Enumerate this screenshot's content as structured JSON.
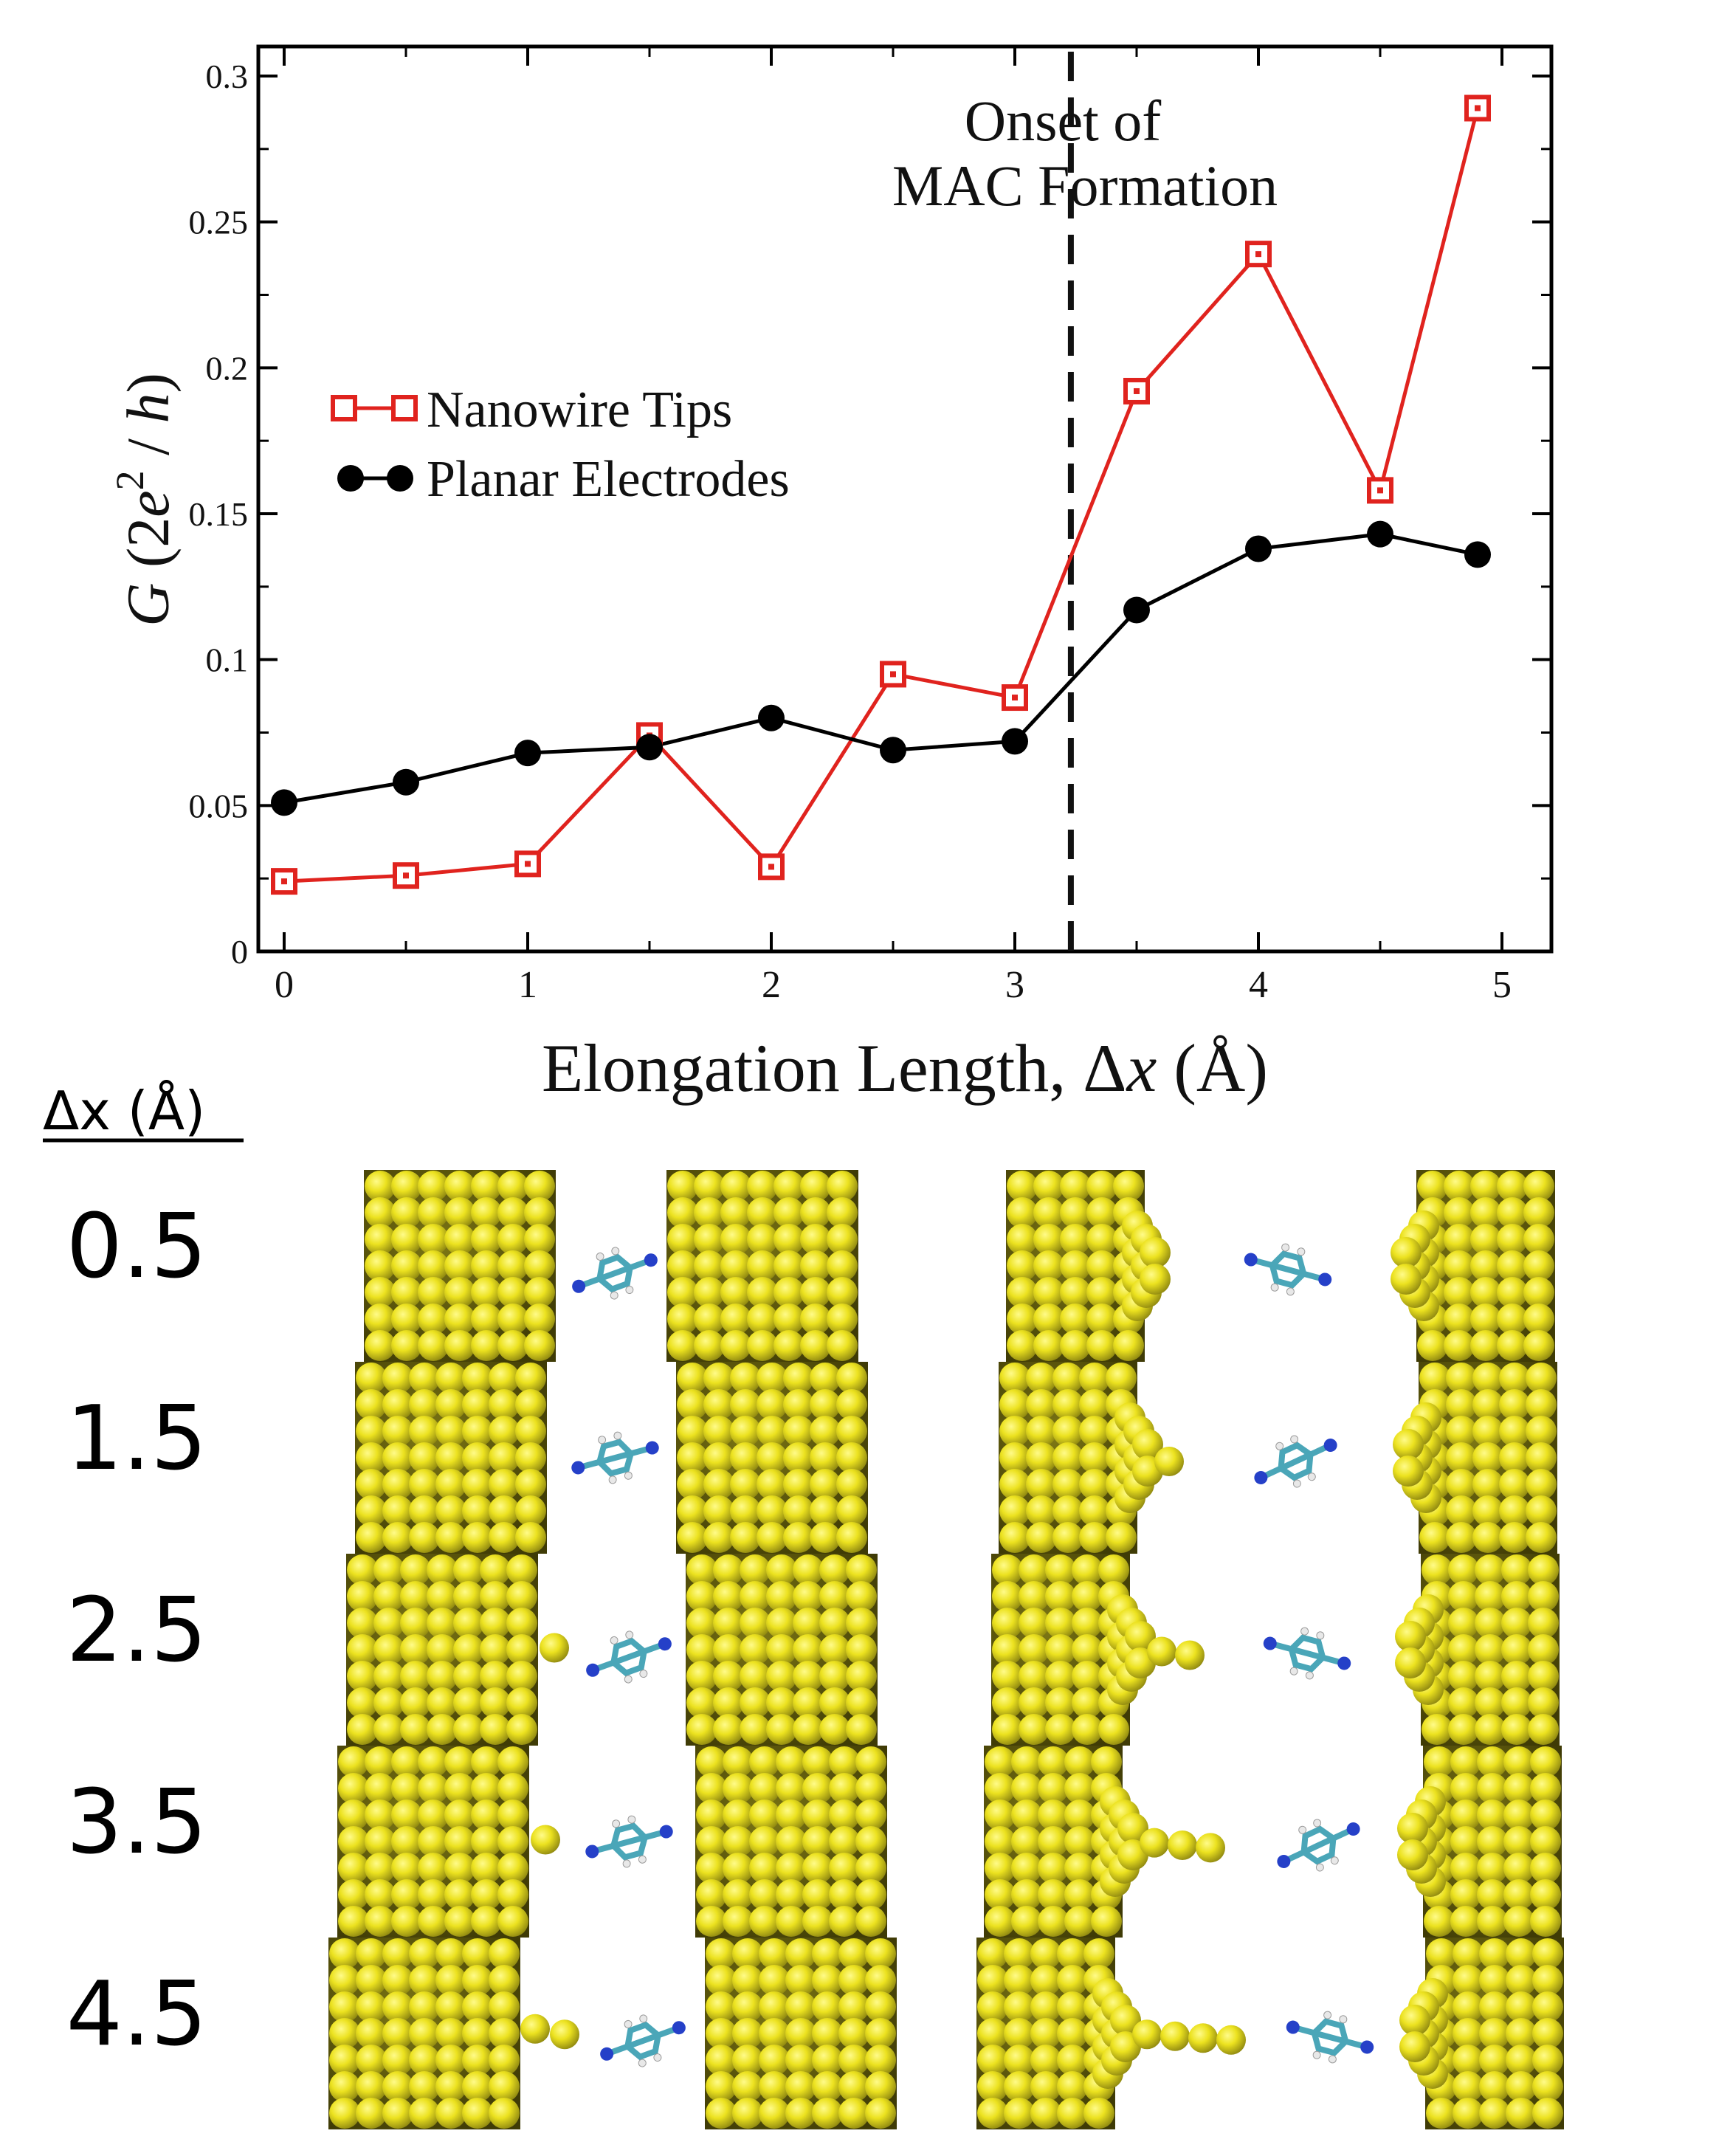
{
  "chart_data": {
    "type": "line",
    "title": "",
    "xlabel": "Elongation Length, Δx (Å)",
    "ylabel": "G (2e²/h)",
    "xlim": [
      -0.1,
      5.2
    ],
    "ylim": [
      0,
      0.3
    ],
    "x_ticks": [
      0,
      1,
      2,
      3,
      4,
      5
    ],
    "x_tick_labels": [
      "0",
      "1",
      "2",
      "3",
      "4",
      "5"
    ],
    "y_ticks": [
      0,
      0.05,
      0.1,
      0.15,
      0.2,
      0.25,
      0.3
    ],
    "y_tick_labels": [
      "0",
      "0.05",
      "0.1",
      "0.15",
      "0.2",
      "0.25",
      "0.3"
    ],
    "grid": false,
    "legend_position": "left",
    "series": [
      {
        "name": "Nanowire Tips",
        "color": "#e0231e",
        "marker": "open-square",
        "x": [
          0,
          0.5,
          1,
          1.5,
          2,
          2.5,
          3,
          3.5,
          4,
          4.5,
          4.9
        ],
        "values": [
          0.024,
          0.026,
          0.03,
          0.074,
          0.029,
          0.095,
          0.087,
          0.192,
          0.239,
          0.158,
          0.289
        ]
      },
      {
        "name": "Planar Electrodes",
        "color": "#000000",
        "marker": "filled-circle",
        "x": [
          0,
          0.5,
          1,
          1.5,
          2,
          2.5,
          3,
          3.5,
          4,
          4.5,
          4.9
        ],
        "values": [
          0.051,
          0.058,
          0.068,
          0.07,
          0.08,
          0.069,
          0.072,
          0.117,
          0.138,
          0.143,
          0.136
        ]
      }
    ],
    "annotations": [
      {
        "text_line1": "Onset of",
        "text_line2": "MAC Formation",
        "x": 3.23,
        "style": "dashed-vertical-line"
      }
    ]
  },
  "panel": {
    "column_header": "Δx (Å)",
    "row_labels": [
      "0.5",
      "1.5",
      "2.5",
      "3.5",
      "4.5"
    ],
    "left_column": "planar-electrodes",
    "right_column": "nanowire-tips",
    "gold_color": "#e4dc2a",
    "gold_dark": "#6b6510",
    "molecule_color": "#4aa6b8",
    "nitrogen_color": "#2540c8"
  }
}
